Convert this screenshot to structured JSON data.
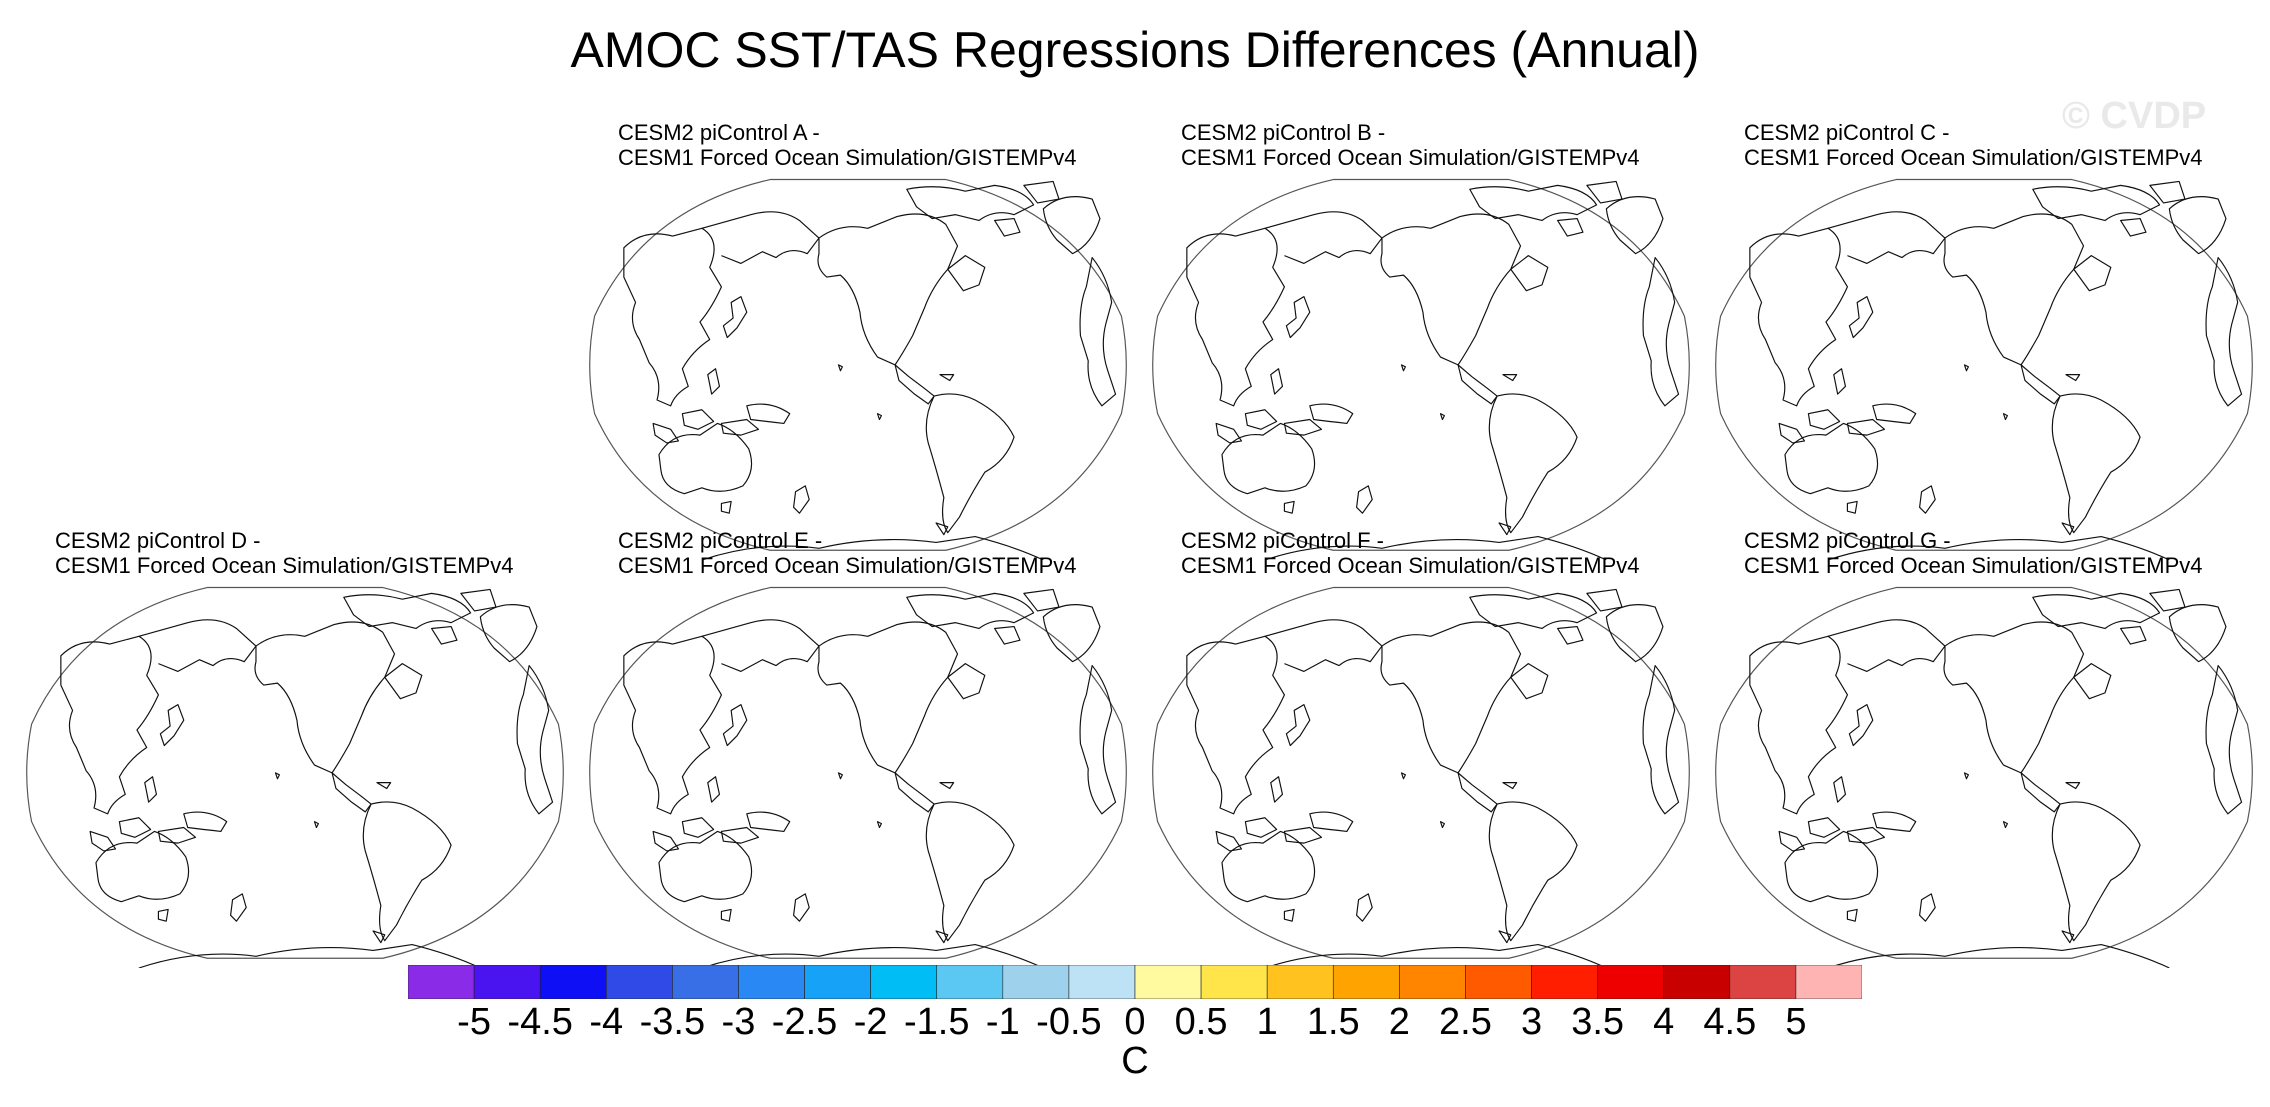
{
  "title": "AMOC SST/TAS Regressions Differences (Annual)",
  "watermark": "© CVDP",
  "panels": [
    {
      "line1": "CESM2 piControl A -",
      "line2": "CESM1 Forced Ocean Simulation/GISTEMPv4"
    },
    {
      "line1": "CESM2 piControl B -",
      "line2": "CESM1 Forced Ocean Simulation/GISTEMPv4"
    },
    {
      "line1": "CESM2 piControl C -",
      "line2": "CESM1 Forced Ocean Simulation/GISTEMPv4"
    },
    {
      "line1": "CESM2 piControl D -",
      "line2": "CESM1 Forced Ocean Simulation/GISTEMPv4"
    },
    {
      "line1": "CESM2 piControl E -",
      "line2": "CESM1 Forced Ocean Simulation/GISTEMPv4"
    },
    {
      "line1": "CESM2 piControl F -",
      "line2": "CESM1 Forced Ocean Simulation/GISTEMPv4"
    },
    {
      "line1": "CESM2 piControl G -",
      "line2": "CESM1 Forced Ocean Simulation/GISTEMPv4"
    }
  ],
  "colorbar": {
    "colors": [
      "#8a2be8",
      "#4a14f0",
      "#0f0ff5",
      "#2f4ae6",
      "#386ee6",
      "#2a88f5",
      "#16a2f7",
      "#00bef5",
      "#5ac8f2",
      "#9ed2ec",
      "#bde2f5",
      "#fffaa0",
      "#ffe54a",
      "#ffc21e",
      "#ffa300",
      "#ff8400",
      "#ff5a00",
      "#ff1e00",
      "#ee0000",
      "#c80000",
      "#dc4444",
      "#ffb4b4"
    ],
    "labels": [
      "-5",
      "-4.5",
      "-4",
      "-3.5",
      "-3",
      "-2.5",
      "-2",
      "-1.5",
      "-1",
      "-0.5",
      "0",
      "0.5",
      "1",
      "1.5",
      "2",
      "2.5",
      "3",
      "3.5",
      "4",
      "4.5",
      "5"
    ],
    "units": "C"
  }
}
